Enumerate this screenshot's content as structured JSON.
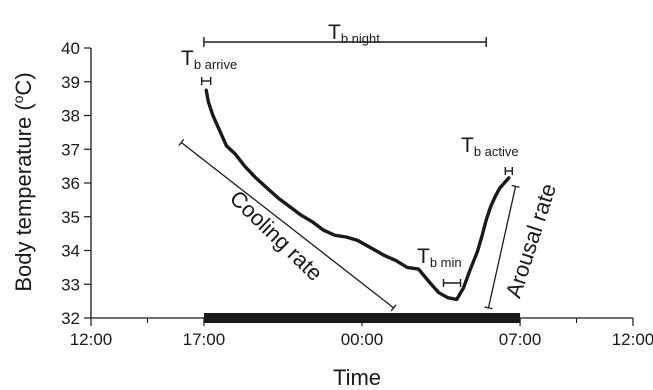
{
  "chart_data": {
    "type": "line",
    "title": "",
    "xlabel": "Time",
    "ylabel": "Body temperature (°C)",
    "ylabel_parts": {
      "before": "Body temperature (",
      "sup": "o",
      "after": "C)"
    },
    "x_unit": "hours since 12:00",
    "xlim": [
      0,
      24
    ],
    "ylim": [
      32,
      40
    ],
    "y_ticks": [
      32,
      33,
      34,
      35,
      36,
      37,
      38,
      39,
      40
    ],
    "x_ticks": [
      {
        "x": 0,
        "label": "12:00"
      },
      {
        "x": 5,
        "label": "17:00"
      },
      {
        "x": 12,
        "label": "00:00"
      },
      {
        "x": 19,
        "label": "07:00"
      },
      {
        "x": 24,
        "label": "12:00"
      }
    ],
    "x_minor_ticks": [
      2.5,
      8.5,
      15.5,
      21.5
    ],
    "grid": false,
    "night_bar": {
      "x_start": 5.0,
      "x_end": 19.0
    },
    "series": [
      {
        "x": [
          5.1,
          5.2,
          5.4,
          5.7,
          6.0,
          6.4,
          6.8,
          7.3,
          7.8,
          8.3,
          8.8,
          9.3,
          9.8,
          10.3,
          10.8,
          11.3,
          11.8,
          12.2,
          12.6,
          13.0,
          13.5,
          14.0,
          14.5,
          15.0,
          15.4,
          15.8,
          16.2,
          16.5,
          16.8,
          17.1,
          17.3,
          17.5,
          17.7,
          17.9,
          18.1,
          18.3,
          18.5
        ],
        "y": [
          38.75,
          38.4,
          38.0,
          37.55,
          37.1,
          36.85,
          36.5,
          36.15,
          35.85,
          35.55,
          35.3,
          35.05,
          34.85,
          34.6,
          34.45,
          34.4,
          34.3,
          34.15,
          34.0,
          33.85,
          33.7,
          33.5,
          33.45,
          33.05,
          32.75,
          32.6,
          32.55,
          32.9,
          33.45,
          33.95,
          34.4,
          34.9,
          35.3,
          35.6,
          35.85,
          36.0,
          36.15
        ]
      }
    ],
    "annotations": {
      "tb_night": {
        "main": "T",
        "sub": "b night",
        "x_start": 5.0,
        "x_end": 17.5
      },
      "tb_arrive": {
        "main": "T",
        "sub": "b arrive"
      },
      "tb_active": {
        "main": "T",
        "sub": "b active"
      },
      "tb_min": {
        "main": "T",
        "sub": "b min"
      },
      "cooling_rate": {
        "label": "Cooling rate",
        "from": [
          4.0,
          37.2
        ],
        "to": [
          13.4,
          32.3
        ]
      },
      "arousal_rate": {
        "label": "Arousal rate",
        "from": [
          17.6,
          32.3
        ],
        "to": [
          18.8,
          35.9
        ]
      }
    },
    "line_color": "#1a1a1a"
  }
}
